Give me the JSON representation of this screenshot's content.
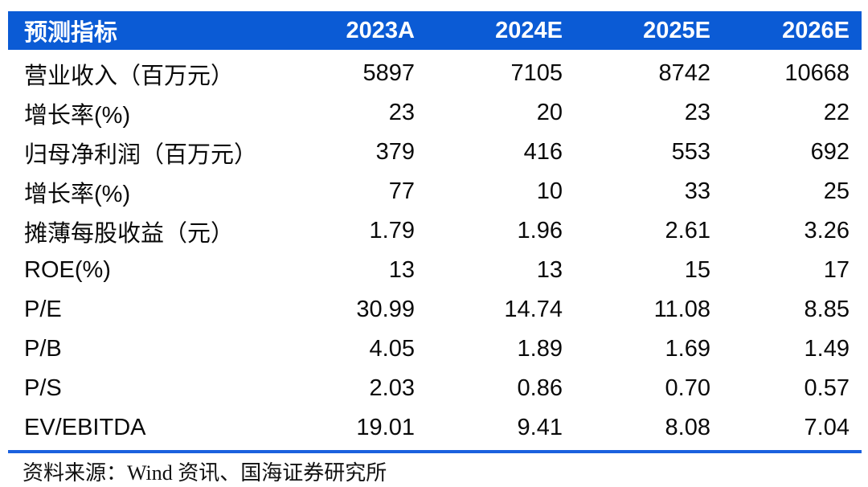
{
  "table": {
    "header": {
      "label": "预测指标",
      "years": [
        "2023A",
        "2024E",
        "2025E",
        "2026E"
      ]
    },
    "rows": [
      {
        "label": "营业收入（百万元）",
        "values": [
          "5897",
          "7105",
          "8742",
          "10668"
        ]
      },
      {
        "label": "增长率(%)",
        "values": [
          "23",
          "20",
          "23",
          "22"
        ]
      },
      {
        "label": "归母净利润（百万元）",
        "values": [
          "379",
          "416",
          "553",
          "692"
        ]
      },
      {
        "label": "增长率(%)",
        "values": [
          "77",
          "10",
          "33",
          "25"
        ]
      },
      {
        "label": "摊薄每股收益（元）",
        "values": [
          "1.79",
          "1.96",
          "2.61",
          "3.26"
        ]
      },
      {
        "label": "ROE(%)",
        "values": [
          "13",
          "13",
          "15",
          "17"
        ]
      },
      {
        "label": "P/E",
        "values": [
          "30.99",
          "14.74",
          "11.08",
          "8.85"
        ]
      },
      {
        "label": "P/B",
        "values": [
          "4.05",
          "1.89",
          "1.69",
          "1.49"
        ]
      },
      {
        "label": "P/S",
        "values": [
          "2.03",
          "0.86",
          "0.70",
          "0.57"
        ]
      },
      {
        "label": "EV/EBITDA",
        "values": [
          "19.01",
          "9.41",
          "8.08",
          "7.04"
        ]
      }
    ]
  },
  "footer": {
    "source": "资料来源：Wind 资讯、国海证券研究所"
  },
  "colors": {
    "header_bg": "#0b5bd5",
    "header_text": "#ffffff",
    "bottom_rule": "#1b61de",
    "body_text": "#0a0a0a"
  }
}
